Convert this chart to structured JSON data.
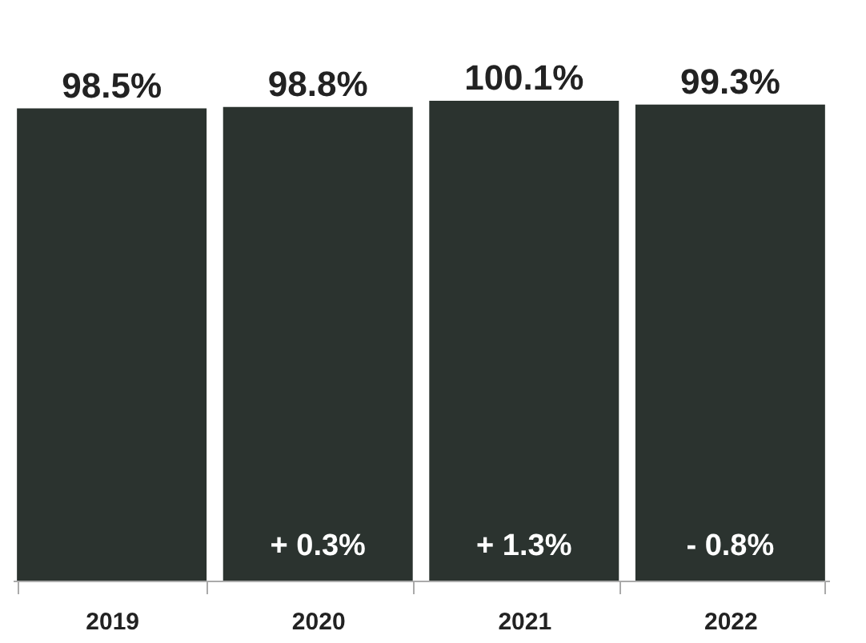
{
  "chart_data": {
    "type": "bar",
    "categories": [
      "2019",
      "2020",
      "2021",
      "2022"
    ],
    "values": [
      98.5,
      98.8,
      100.1,
      99.3
    ],
    "color": "#2b332f",
    "data_labels": true,
    "value_labels": [
      "98.5%",
      "98.8%",
      "100.1%",
      "99.3%"
    ],
    "tick_labels": "x",
    "grid": false,
    "annotations": [
      "+ 0.3%",
      "+ 1.3%",
      "- 0.8%"
    ]
  }
}
